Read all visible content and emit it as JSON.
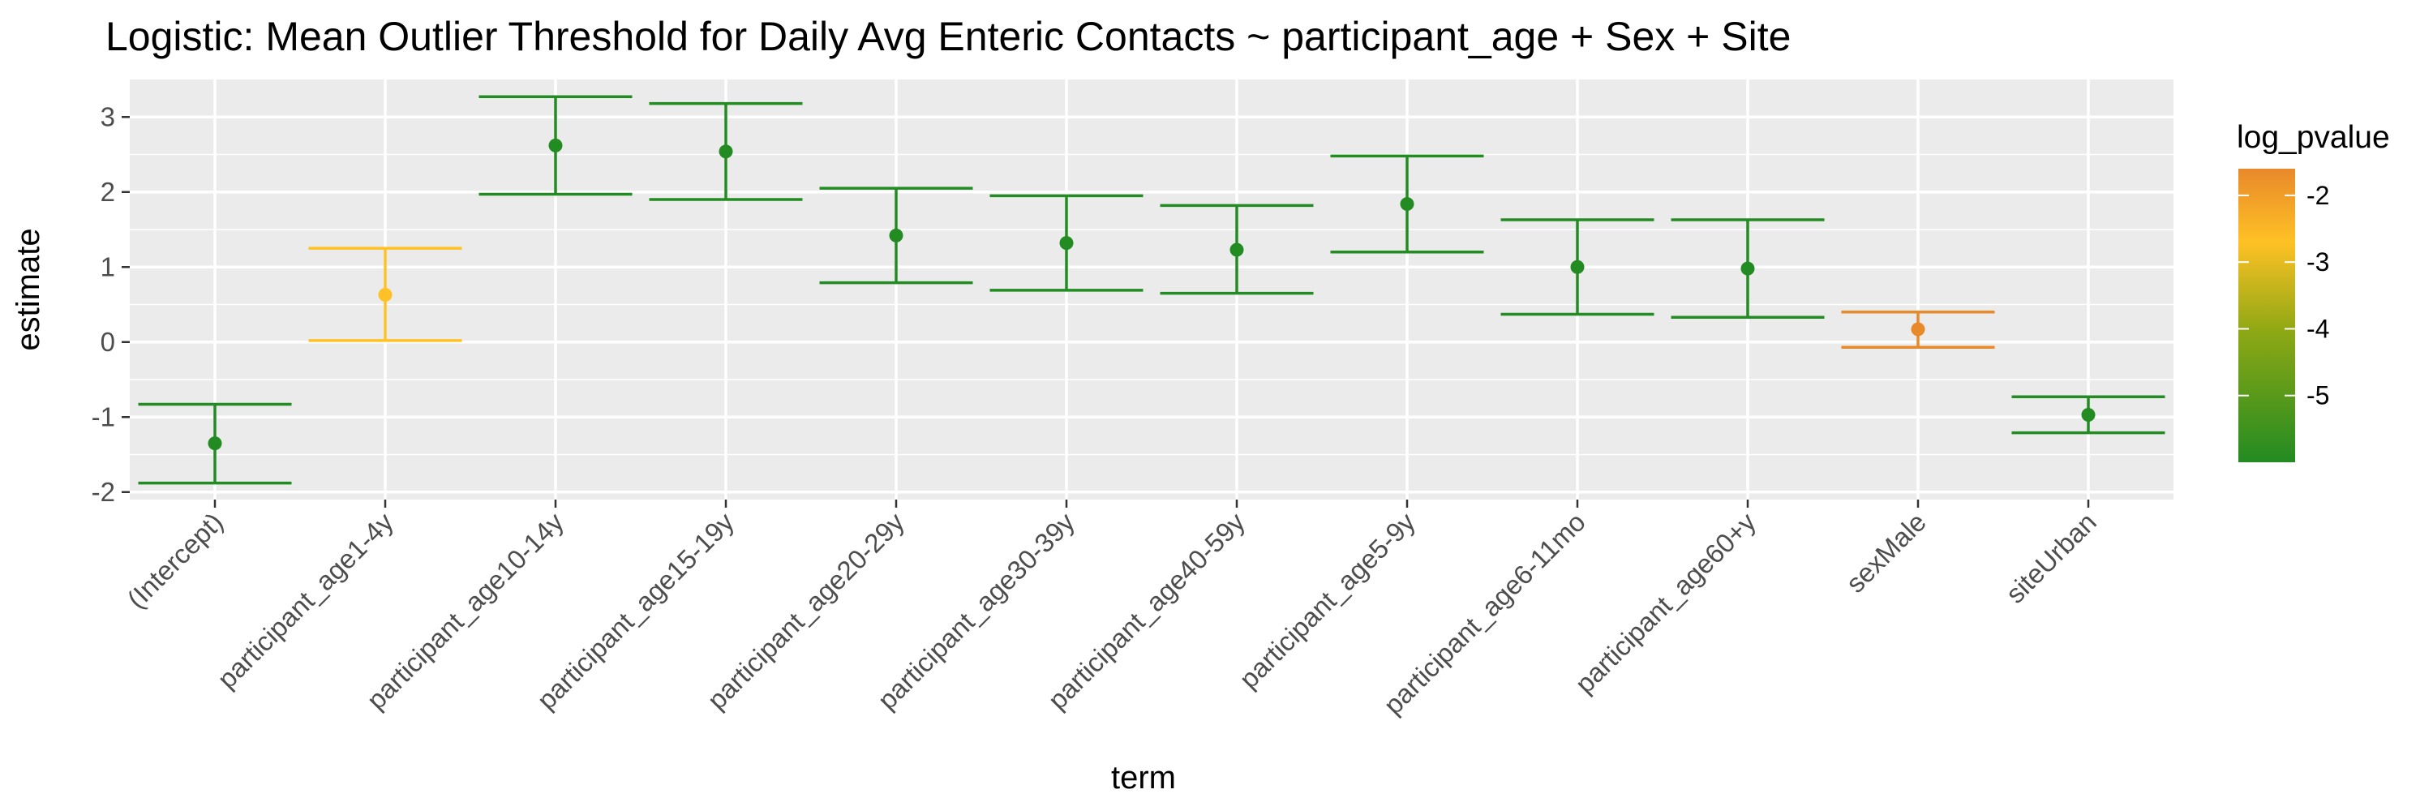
{
  "chart_data": {
    "type": "errorbar",
    "title": "Logistic: Mean Outlier Threshold for Daily Avg Enteric Contacts ~ participant_age + Sex + Site",
    "xlabel": "term",
    "ylabel": "estimate",
    "ylim": [
      -2.1,
      3.5
    ],
    "yticks": [
      -2,
      -1,
      0,
      1,
      2,
      3
    ],
    "ytick_labels": [
      "-2",
      "-1",
      "0",
      "1",
      "2",
      "3"
    ],
    "grid": true,
    "legend": {
      "title": "log_pvalue",
      "placement": "right",
      "range": [
        -6,
        -1.6
      ],
      "ticks": [
        -2,
        -3,
        -4,
        -5
      ],
      "tick_labels": [
        "-2",
        "-3",
        "-4",
        "-5"
      ],
      "colors": [
        "#228B22",
        "#8FA814",
        "#FFC125",
        "#E8892A"
      ]
    },
    "points": [
      {
        "term": "(Intercept)",
        "estimate": -1.35,
        "lower": -1.88,
        "upper": -0.83,
        "log_pvalue": -5.9,
        "color": "#228B22"
      },
      {
        "term": "participant_age1-4y",
        "estimate": 0.63,
        "lower": 0.02,
        "upper": 1.25,
        "log_pvalue": -3.0,
        "color": "#FFC125"
      },
      {
        "term": "participant_age10-14y",
        "estimate": 2.62,
        "lower": 1.97,
        "upper": 3.27,
        "log_pvalue": -5.9,
        "color": "#228B22"
      },
      {
        "term": "participant_age15-19y",
        "estimate": 2.54,
        "lower": 1.9,
        "upper": 3.18,
        "log_pvalue": -5.9,
        "color": "#228B22"
      },
      {
        "term": "participant_age20-29y",
        "estimate": 1.42,
        "lower": 0.79,
        "upper": 2.05,
        "log_pvalue": -5.9,
        "color": "#228B22"
      },
      {
        "term": "participant_age30-39y",
        "estimate": 1.32,
        "lower": 0.69,
        "upper": 1.95,
        "log_pvalue": -5.9,
        "color": "#228B22"
      },
      {
        "term": "participant_age40-59y",
        "estimate": 1.23,
        "lower": 0.65,
        "upper": 1.82,
        "log_pvalue": -5.9,
        "color": "#228B22"
      },
      {
        "term": "participant_age5-9y",
        "estimate": 1.84,
        "lower": 1.2,
        "upper": 2.48,
        "log_pvalue": -5.9,
        "color": "#228B22"
      },
      {
        "term": "participant_age6-11mo",
        "estimate": 1.0,
        "lower": 0.37,
        "upper": 1.63,
        "log_pvalue": -5.9,
        "color": "#228B22"
      },
      {
        "term": "participant_age60+y",
        "estimate": 0.98,
        "lower": 0.33,
        "upper": 1.63,
        "log_pvalue": -5.9,
        "color": "#228B22"
      },
      {
        "term": "sexMale",
        "estimate": 0.17,
        "lower": -0.07,
        "upper": 0.4,
        "log_pvalue": -1.7,
        "color": "#E8892A"
      },
      {
        "term": "siteUrban",
        "estimate": -0.97,
        "lower": -1.21,
        "upper": -0.73,
        "log_pvalue": -5.9,
        "color": "#228B22"
      }
    ]
  }
}
